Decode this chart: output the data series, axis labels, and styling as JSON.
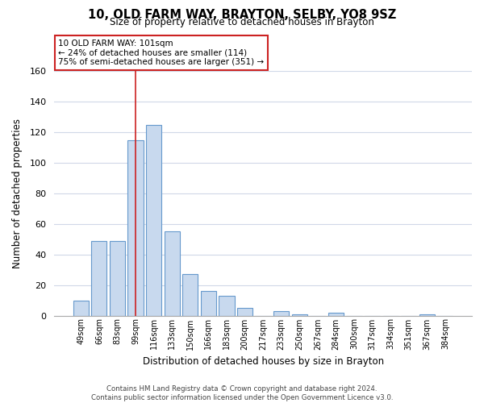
{
  "title": "10, OLD FARM WAY, BRAYTON, SELBY, YO8 9SZ",
  "subtitle": "Size of property relative to detached houses in Brayton",
  "xlabel": "Distribution of detached houses by size in Brayton",
  "ylabel": "Number of detached properties",
  "bar_labels": [
    "49sqm",
    "66sqm",
    "83sqm",
    "99sqm",
    "116sqm",
    "133sqm",
    "150sqm",
    "166sqm",
    "183sqm",
    "200sqm",
    "217sqm",
    "233sqm",
    "250sqm",
    "267sqm",
    "284sqm",
    "300sqm",
    "317sqm",
    "334sqm",
    "351sqm",
    "367sqm",
    "384sqm"
  ],
  "bar_values": [
    10,
    49,
    49,
    115,
    125,
    55,
    27,
    16,
    13,
    5,
    0,
    3,
    1,
    0,
    2,
    0,
    0,
    0,
    0,
    1,
    0
  ],
  "bar_color": "#c8d9ee",
  "bar_edge_color": "#6699cc",
  "marker_bar_index": 3,
  "marker_color": "#cc2222",
  "annotation_box_text": "10 OLD FARM WAY: 101sqm\n← 24% of detached houses are smaller (114)\n75% of semi-detached houses are larger (351) →",
  "annotation_box_edge_color": "#cc2222",
  "annotation_box_face_color": "#ffffff",
  "ylim": [
    0,
    160
  ],
  "yticks": [
    0,
    20,
    40,
    60,
    80,
    100,
    120,
    140,
    160
  ],
  "grid_color": "#d0d8e8",
  "footer_line1": "Contains HM Land Registry data © Crown copyright and database right 2024.",
  "footer_line2": "Contains public sector information licensed under the Open Government Licence v3.0.",
  "background_color": "#ffffff",
  "fig_width": 6.0,
  "fig_height": 5.0,
  "dpi": 100
}
